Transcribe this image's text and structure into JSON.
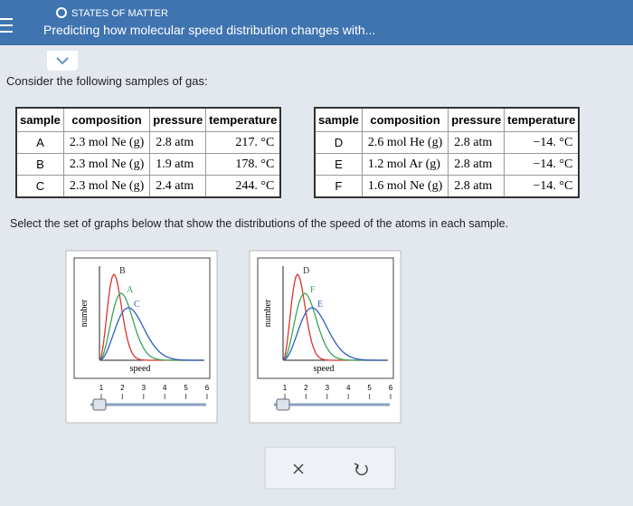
{
  "header": {
    "section": "STATES OF MATTER",
    "title": "Predicting how molecular speed distribution changes with..."
  },
  "prompt": "Consider the following samples of gas:",
  "tables": [
    {
      "columns": [
        "sample",
        "composition",
        "pressure",
        "temperature"
      ],
      "rows": [
        [
          "A",
          "2.3 mol Ne (g)",
          "2.8 atm",
          "217. °C"
        ],
        [
          "B",
          "2.3 mol Ne (g)",
          "1.9 atm",
          "178. °C"
        ],
        [
          "C",
          "2.3 mol Ne (g)",
          "2.4 atm",
          "244. °C"
        ]
      ]
    },
    {
      "columns": [
        "sample",
        "composition",
        "pressure",
        "temperature"
      ],
      "rows": [
        [
          "D",
          "2.6 mol He (g)",
          "2.8 atm",
          "−14. °C"
        ],
        [
          "E",
          "1.2 mol Ar (g)",
          "2.8 atm",
          "−14. °C"
        ],
        [
          "F",
          "1.6 mol Ne (g)",
          "2.8 atm",
          "−14. °C"
        ]
      ]
    }
  ],
  "instruction": "Select the set of graphs below that show the distributions of the speed of the atoms in each sample.",
  "graphs": [
    {
      "y_label": "number",
      "x_label": "speed",
      "curve_labels": [
        "B",
        "A",
        "C"
      ],
      "slider_labels": [
        "1",
        "2",
        "3",
        "4",
        "5",
        "6"
      ]
    },
    {
      "y_label": "number",
      "x_label": "speed",
      "curve_labels": [
        "D",
        "F",
        "E"
      ],
      "slider_labels": [
        "1",
        "2",
        "3",
        "4",
        "5",
        "6"
      ]
    }
  ]
}
